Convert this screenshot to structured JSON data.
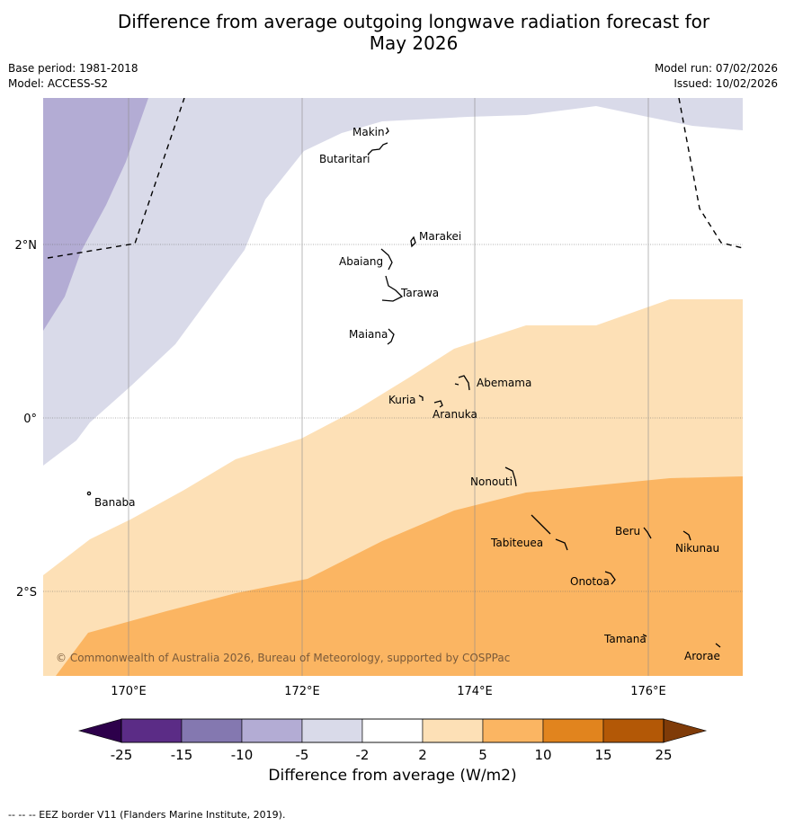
{
  "header": {
    "title_line1": "Difference from average outgoing longwave radiation forecast for",
    "title_line2": "May 2026",
    "base_period": "Base period: 1981-2018",
    "model": "Model: ACCESS-S2",
    "model_run": "Model run: 07/02/2026",
    "issued": "Issued: 10/02/2026"
  },
  "map": {
    "lon_labels": [
      "170°E",
      "172°E",
      "174°E",
      "176°E"
    ],
    "lat_labels": [
      "2°N",
      "0°",
      "2°S"
    ],
    "copyright": "© Commonwealth of Australia 2026, Bureau of Meteorology, supported by COSPPac",
    "places": [
      "Makin",
      "Butaritari",
      "Marakei",
      "Abaiang",
      "Tarawa",
      "Maiana",
      "Abemama",
      "Kuria",
      "Aranuka",
      "Nonouti",
      "Banaba",
      "Beru",
      "Tabiteuea",
      "Nikunau",
      "Onotoa",
      "Tamana",
      "Arorae"
    ]
  },
  "colorbar": {
    "ticks": [
      "-25",
      "-15",
      "-10",
      "-5",
      "-2",
      "2",
      "5",
      "10",
      "15",
      "25"
    ],
    "colors": [
      "#5b2c86",
      "#8478b0",
      "#b3acd4",
      "#d9dae9",
      "#ffffff",
      "#fde0b6",
      "#fbb562",
      "#e1841e",
      "#b35806"
    ],
    "low_extend": "#2d004b",
    "high_extend": "#7f3b08",
    "title": "Difference from average (W/m2)"
  },
  "footer": "-- -- -- EEZ border V11 (Flanders Marine Institute, 2019)."
}
